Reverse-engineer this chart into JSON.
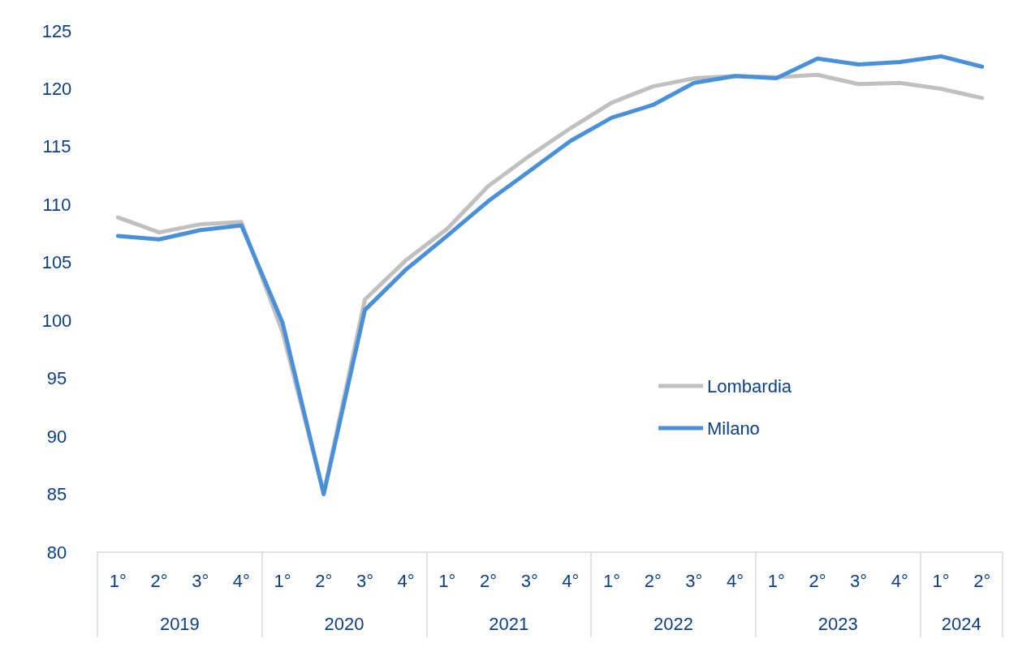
{
  "chart_data": {
    "type": "line",
    "categories": [
      "1°",
      "2°",
      "3°",
      "4°",
      "1°",
      "2°",
      "3°",
      "4°",
      "1°",
      "2°",
      "3°",
      "4°",
      "1°",
      "2°",
      "3°",
      "4°",
      "1°",
      "2°",
      "3°",
      "4°",
      "1°",
      "2°"
    ],
    "annotations": [
      "2019",
      "2020",
      "2021",
      "2022",
      "2023",
      "2024"
    ],
    "series": [
      {
        "name": "Lombardia",
        "color": "#c0c0c0",
        "values": [
          108.9,
          107.6,
          108.3,
          108.5,
          99.0,
          85.1,
          101.8,
          105.2,
          107.9,
          111.6,
          114.2,
          116.6,
          118.8,
          120.2,
          120.9,
          121.1,
          121.0,
          121.2,
          120.4,
          120.5,
          120.0,
          119.2
        ]
      },
      {
        "name": "Milano",
        "color": "#4a90d9",
        "values": [
          107.3,
          107.0,
          107.8,
          108.2,
          99.8,
          85.0,
          100.9,
          104.4,
          107.3,
          110.3,
          112.9,
          115.5,
          117.5,
          118.6,
          120.5,
          121.1,
          120.9,
          122.6,
          122.1,
          122.3,
          122.8,
          121.9
        ]
      }
    ],
    "ylim": [
      80,
      125
    ],
    "yticks": [
      80,
      85,
      90,
      95,
      100,
      105,
      110,
      115,
      120,
      125
    ],
    "grid": false,
    "legend": "right",
    "marker": "none",
    "line_style": "solid"
  }
}
